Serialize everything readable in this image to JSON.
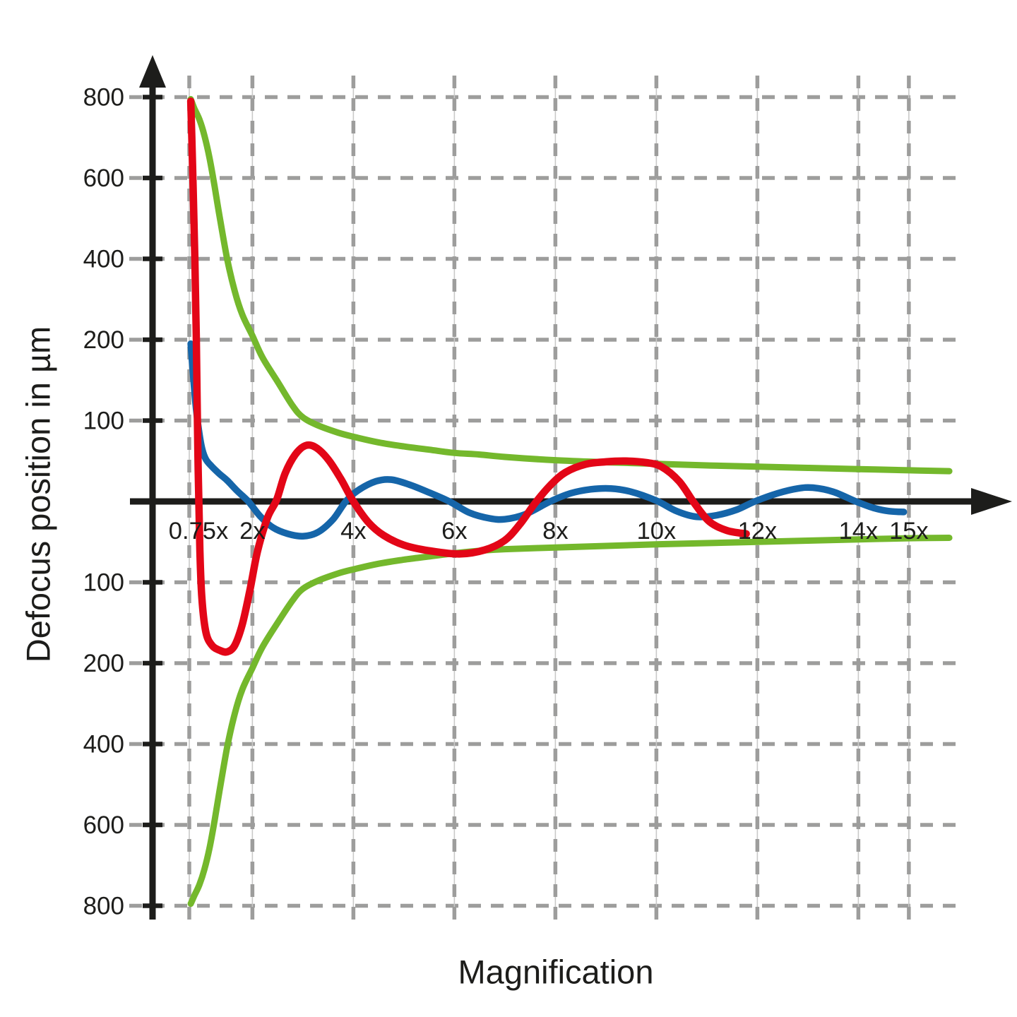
{
  "chart_data": {
    "type": "line",
    "title": "",
    "xlabel": "Magnification",
    "ylabel": "Defocus position in µm",
    "grid": true,
    "legend": false,
    "x_ticks": [
      {
        "value": 0.75,
        "label": "0.75x"
      },
      {
        "value": 2,
        "label": "2x"
      },
      {
        "value": 4,
        "label": "4x"
      },
      {
        "value": 6,
        "label": "6x"
      },
      {
        "value": 8,
        "label": "8x"
      },
      {
        "value": 10,
        "label": "10x"
      },
      {
        "value": 12,
        "label": "12x"
      },
      {
        "value": 14,
        "label": "14x"
      },
      {
        "value": 15,
        "label": "15x"
      }
    ],
    "y_ticks": [
      {
        "value": 800,
        "label": "800"
      },
      {
        "value": 600,
        "label": "600"
      },
      {
        "value": 400,
        "label": "400"
      },
      {
        "value": 200,
        "label": "200"
      },
      {
        "value": 100,
        "label": "100"
      },
      {
        "value": -100,
        "label": "100"
      },
      {
        "value": -200,
        "label": "200"
      },
      {
        "value": -400,
        "label": "400"
      },
      {
        "value": -600,
        "label": "600"
      },
      {
        "value": -800,
        "label": "800"
      }
    ],
    "y_scale": {
      "type": "piecewise-symmetric",
      "bands": [
        0,
        100,
        200,
        400,
        600,
        800
      ],
      "note": "equal spacing between consecutive listed magnitudes, mirrored below zero"
    },
    "x_range": [
      0.75,
      15.8
    ],
    "colors": {
      "axis": "#1d1d1b",
      "grid": "#9d9d9c",
      "grid_thin": "#c9c9c8",
      "green": "#74b82c",
      "blue": "#1565a9",
      "red": "#e30617"
    },
    "series": [
      {
        "name": "envelope-upper-green",
        "color": "#74b82c",
        "width": 9,
        "points": [
          [
            0.78,
            795
          ],
          [
            0.85,
            772
          ],
          [
            0.95,
            745
          ],
          [
            1.05,
            705
          ],
          [
            1.15,
            650
          ],
          [
            1.25,
            580
          ],
          [
            1.35,
            505
          ],
          [
            1.5,
            400
          ],
          [
            1.65,
            320
          ],
          [
            1.8,
            262
          ],
          [
            2.0,
            210
          ],
          [
            2.2,
            178
          ],
          [
            2.5,
            148
          ],
          [
            2.8,
            118
          ],
          [
            3.0,
            104
          ],
          [
            3.3,
            94
          ],
          [
            3.7,
            85
          ],
          [
            4.0,
            80
          ],
          [
            4.5,
            73
          ],
          [
            5.0,
            68
          ],
          [
            5.5,
            64
          ],
          [
            6.0,
            60
          ],
          [
            6.5,
            58
          ],
          [
            7.0,
            55
          ],
          [
            8.0,
            51
          ],
          [
            9.0,
            48.5
          ],
          [
            10.0,
            46.5
          ],
          [
            11.0,
            44.5
          ],
          [
            12.0,
            43
          ],
          [
            13.0,
            41.5
          ],
          [
            14.0,
            40
          ],
          [
            15.0,
            38.5
          ],
          [
            15.8,
            37.5
          ]
        ]
      },
      {
        "name": "envelope-lower-green",
        "color": "#74b82c",
        "width": 9,
        "points": [
          [
            0.78,
            -795
          ],
          [
            0.85,
            -775
          ],
          [
            0.95,
            -748
          ],
          [
            1.05,
            -710
          ],
          [
            1.15,
            -658
          ],
          [
            1.25,
            -590
          ],
          [
            1.35,
            -515
          ],
          [
            1.5,
            -408
          ],
          [
            1.65,
            -325
          ],
          [
            1.8,
            -265
          ],
          [
            2.0,
            -212
          ],
          [
            2.2,
            -180
          ],
          [
            2.5,
            -150
          ],
          [
            2.8,
            -122
          ],
          [
            3.0,
            -108
          ],
          [
            3.3,
            -98
          ],
          [
            3.7,
            -89
          ],
          [
            4.0,
            -84
          ],
          [
            4.5,
            -77
          ],
          [
            5.0,
            -72
          ],
          [
            5.5,
            -68
          ],
          [
            6.0,
            -64
          ],
          [
            6.5,
            -61
          ],
          [
            7.0,
            -59
          ],
          [
            8.0,
            -57
          ],
          [
            9.0,
            -55
          ],
          [
            10.0,
            -53
          ],
          [
            11.0,
            -51.5
          ],
          [
            12.0,
            -50
          ],
          [
            13.0,
            -48.5
          ],
          [
            14.0,
            -47
          ],
          [
            15.0,
            -45.5
          ],
          [
            15.8,
            -45
          ]
        ]
      },
      {
        "name": "oscillation-blue",
        "color": "#1565a9",
        "width": 9.5,
        "points": [
          [
            0.78,
            195
          ],
          [
            0.82,
            162
          ],
          [
            0.87,
            124
          ],
          [
            0.93,
            92
          ],
          [
            1.0,
            66
          ],
          [
            1.08,
            52
          ],
          [
            1.2,
            43
          ],
          [
            1.35,
            34
          ],
          [
            1.5,
            26
          ],
          [
            1.7,
            13
          ],
          [
            1.92,
            0
          ],
          [
            2.15,
            -18
          ],
          [
            2.4,
            -32
          ],
          [
            2.7,
            -40
          ],
          [
            3.0,
            -43
          ],
          [
            3.3,
            -38
          ],
          [
            3.6,
            -22
          ],
          [
            3.85,
            0
          ],
          [
            4.1,
            14
          ],
          [
            4.45,
            25
          ],
          [
            4.75,
            27
          ],
          [
            5.1,
            21
          ],
          [
            5.5,
            11
          ],
          [
            5.9,
            0
          ],
          [
            6.3,
            -14
          ],
          [
            6.7,
            -21
          ],
          [
            7.0,
            -22
          ],
          [
            7.4,
            -16
          ],
          [
            7.9,
            0
          ],
          [
            8.3,
            10
          ],
          [
            8.7,
            15
          ],
          [
            9.1,
            16
          ],
          [
            9.5,
            12
          ],
          [
            10.0,
            1
          ],
          [
            10.4,
            -12
          ],
          [
            10.8,
            -19
          ],
          [
            11.2,
            -17
          ],
          [
            11.6,
            -10
          ],
          [
            11.95,
            0
          ],
          [
            12.4,
            10
          ],
          [
            12.8,
            16
          ],
          [
            13.1,
            17
          ],
          [
            13.5,
            12
          ],
          [
            13.95,
            0
          ],
          [
            14.3,
            -8
          ],
          [
            14.6,
            -12
          ],
          [
            14.9,
            -13
          ]
        ]
      },
      {
        "name": "oscillation-red",
        "color": "#e30617",
        "width": 10.5,
        "points": [
          [
            0.78,
            790
          ],
          [
            0.8,
            700
          ],
          [
            0.83,
            560
          ],
          [
            0.86,
            400
          ],
          [
            0.89,
            200
          ],
          [
            0.92,
            60
          ],
          [
            0.96,
            -60
          ],
          [
            1.0,
            -120
          ],
          [
            1.08,
            -162
          ],
          [
            1.2,
            -178
          ],
          [
            1.35,
            -184
          ],
          [
            1.5,
            -186
          ],
          [
            1.65,
            -178
          ],
          [
            1.8,
            -152
          ],
          [
            1.95,
            -110
          ],
          [
            2.1,
            -62
          ],
          [
            2.3,
            -20
          ],
          [
            2.48,
            2
          ],
          [
            2.65,
            35
          ],
          [
            2.85,
            58
          ],
          [
            3.05,
            69
          ],
          [
            3.25,
            67
          ],
          [
            3.5,
            52
          ],
          [
            3.75,
            28
          ],
          [
            4.0,
            0
          ],
          [
            4.3,
            -26
          ],
          [
            4.6,
            -42
          ],
          [
            5.0,
            -54
          ],
          [
            5.5,
            -61
          ],
          [
            6.1,
            -65
          ],
          [
            6.6,
            -60
          ],
          [
            7.0,
            -48
          ],
          [
            7.3,
            -28
          ],
          [
            7.6,
            -2
          ],
          [
            7.9,
            20
          ],
          [
            8.2,
            36
          ],
          [
            8.6,
            46
          ],
          [
            9.0,
            49
          ],
          [
            9.4,
            50
          ],
          [
            9.8,
            48
          ],
          [
            10.1,
            43
          ],
          [
            10.45,
            25
          ],
          [
            10.75,
            -2
          ],
          [
            11.05,
            -25
          ],
          [
            11.4,
            -36
          ],
          [
            11.78,
            -40
          ]
        ]
      }
    ]
  }
}
